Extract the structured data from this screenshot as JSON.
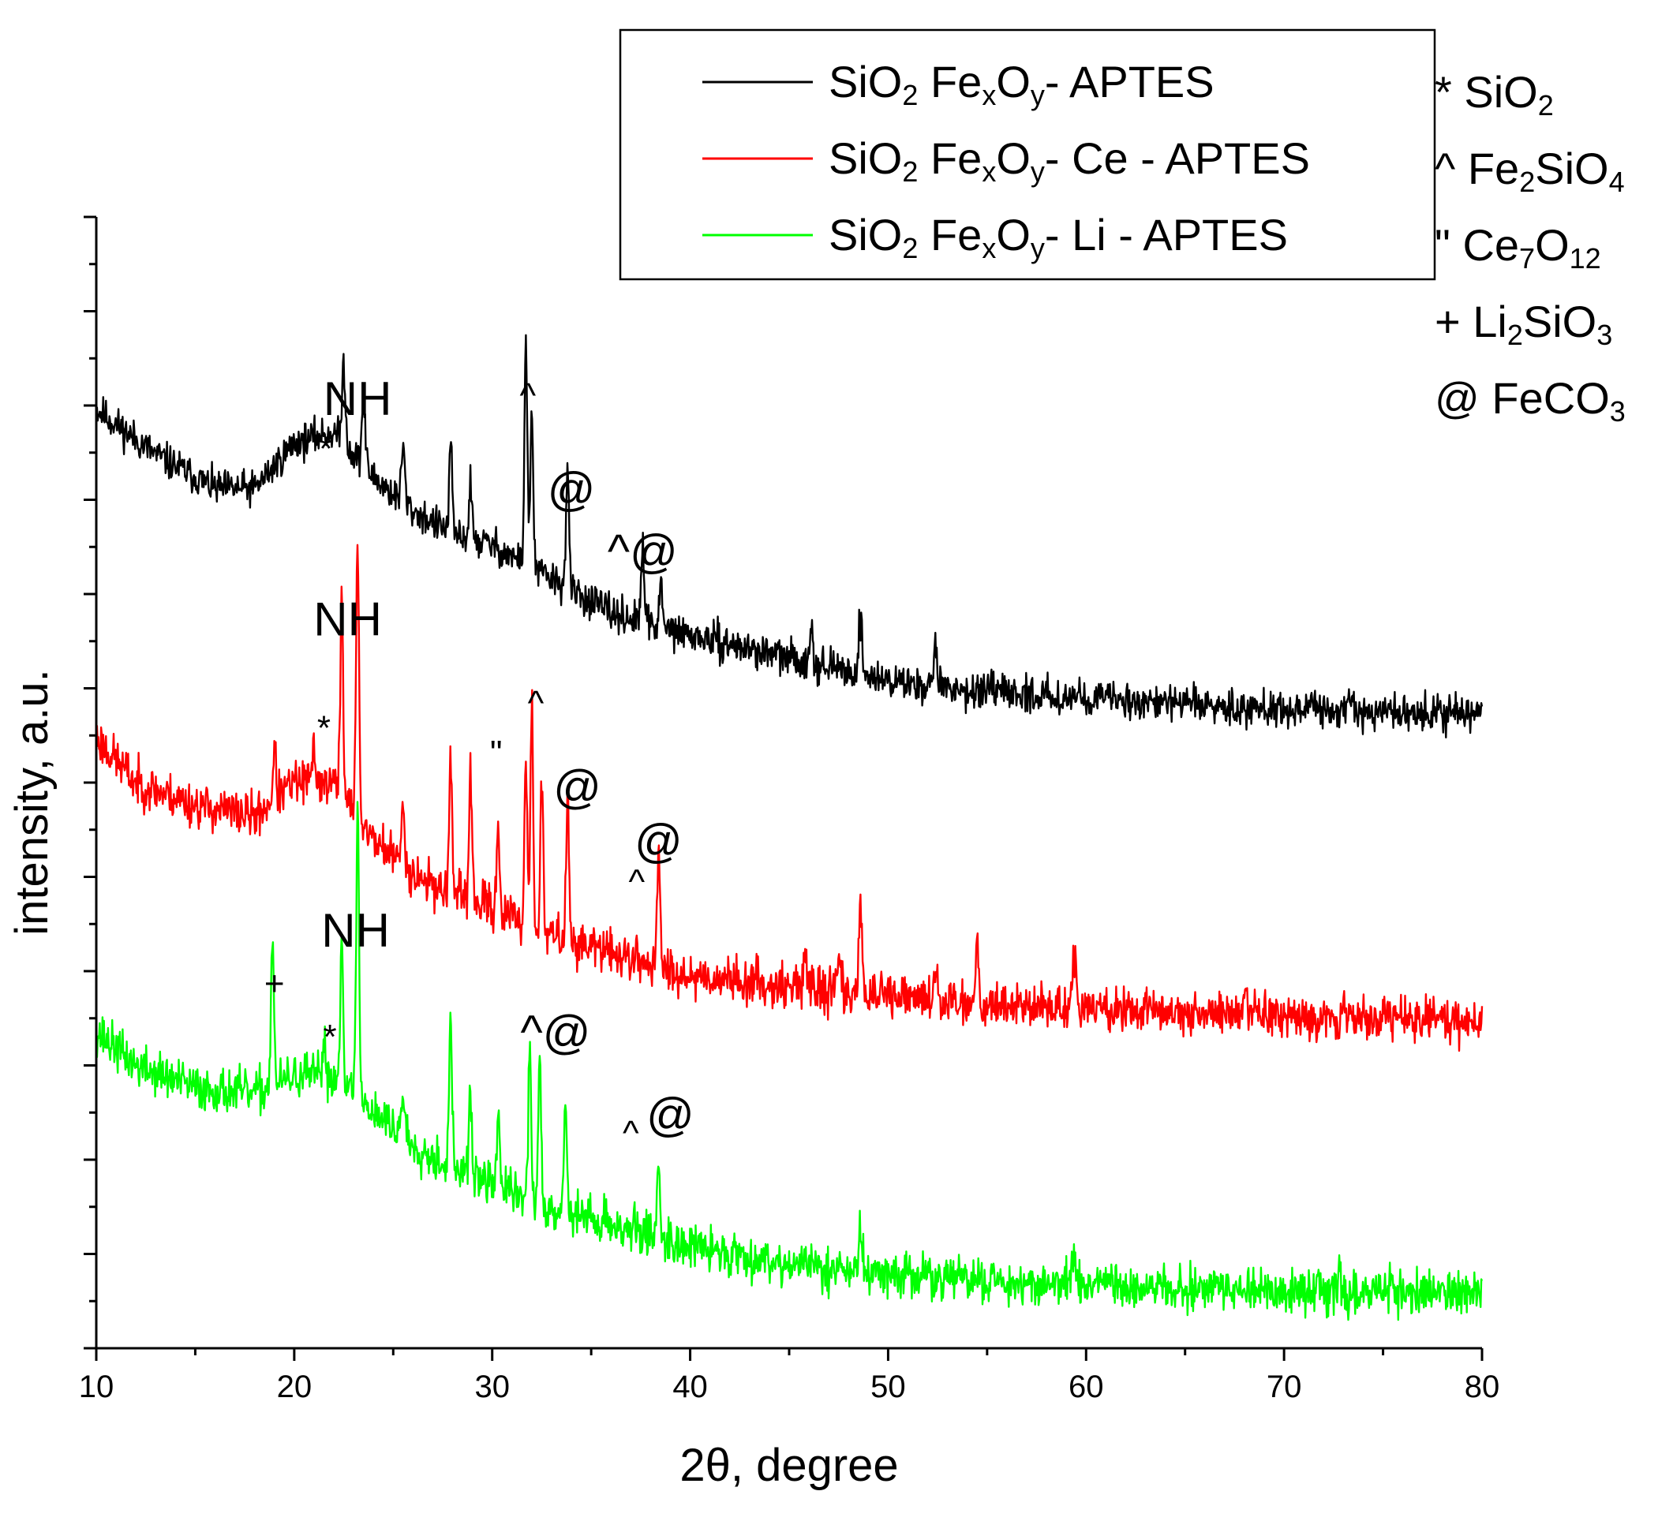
{
  "chart_data": {
    "type": "line",
    "title": "",
    "xlabel": "2θ, degree",
    "ylabel": "intensity, a.u.",
    "xlim": [
      10,
      80
    ],
    "ylim": [
      0,
      100
    ],
    "xticks": [
      10,
      20,
      30,
      40,
      50,
      60,
      70,
      80
    ],
    "y_tick_labels_shown": false,
    "grid": false,
    "legend_position": "top-right",
    "series": [
      {
        "name": "SiO2 FexOy- APTES",
        "name_parts": [
          {
            "text": "SiO",
            "sub": false
          },
          {
            "text": "2",
            "sub": true
          },
          {
            "text": " Fe",
            "sub": false
          },
          {
            "text": "x",
            "sub": true
          },
          {
            "text": "O",
            "sub": false
          },
          {
            "text": "y",
            "sub": true
          },
          {
            "text": "- APTES",
            "sub": false
          }
        ],
        "color": "#000000",
        "seed": 11,
        "noise": 1.1,
        "baseline": [
          [
            10,
            83
          ],
          [
            13,
            79
          ],
          [
            16,
            76
          ],
          [
            18,
            76
          ],
          [
            20,
            80
          ],
          [
            22,
            81
          ],
          [
            24,
            77
          ],
          [
            26,
            74
          ],
          [
            28,
            72
          ],
          [
            30,
            71
          ],
          [
            32,
            69
          ],
          [
            36,
            65
          ],
          [
            40,
            63
          ],
          [
            45,
            61
          ],
          [
            50,
            59
          ],
          [
            55,
            58
          ],
          [
            60,
            57.5
          ],
          [
            70,
            56.5
          ],
          [
            80,
            56
          ]
        ],
        "peaks": [
          [
            22.5,
            7,
            0.12
          ],
          [
            23.5,
            6,
            0.12
          ],
          [
            25.5,
            5,
            0.12
          ],
          [
            27.9,
            8,
            0.1
          ],
          [
            28.9,
            5,
            0.1
          ],
          [
            31.7,
            20,
            0.1
          ],
          [
            32.0,
            14,
            0.1
          ],
          [
            33.8,
            11,
            0.1
          ],
          [
            37.6,
            7,
            0.1
          ],
          [
            38.5,
            4,
            0.1
          ],
          [
            46.1,
            3.5,
            0.12
          ],
          [
            48.6,
            5,
            0.12
          ],
          [
            52.4,
            3.5,
            0.12
          ]
        ]
      },
      {
        "name": "SiO2 FexOy- Ce - APTES",
        "name_parts": [
          {
            "text": "SiO",
            "sub": false
          },
          {
            "text": "2",
            "sub": true
          },
          {
            "text": " Fe",
            "sub": false
          },
          {
            "text": "x",
            "sub": true
          },
          {
            "text": "O",
            "sub": false
          },
          {
            "text": "y",
            "sub": true
          },
          {
            "text": "- Ce - APTES",
            "sub": false
          }
        ],
        "color": "#ff0000",
        "seed": 23,
        "noise": 1.4,
        "baseline": [
          [
            10,
            54
          ],
          [
            12,
            50
          ],
          [
            15,
            48
          ],
          [
            18,
            47
          ],
          [
            20,
            50
          ],
          [
            22,
            50
          ],
          [
            24,
            45
          ],
          [
            26,
            42
          ],
          [
            28,
            40
          ],
          [
            30,
            39
          ],
          [
            32,
            37
          ],
          [
            36,
            35
          ],
          [
            40,
            33
          ],
          [
            45,
            32
          ],
          [
            50,
            31
          ],
          [
            55,
            30.5
          ],
          [
            60,
            30
          ],
          [
            70,
            29.5
          ],
          [
            80,
            29
          ]
        ],
        "peaks": [
          [
            19.0,
            4,
            0.12
          ],
          [
            21.0,
            3,
            0.12
          ],
          [
            22.4,
            18,
            0.1
          ],
          [
            23.2,
            25,
            0.1
          ],
          [
            25.5,
            5,
            0.12
          ],
          [
            27.9,
            13,
            0.1
          ],
          [
            28.9,
            12,
            0.1
          ],
          [
            30.3,
            8,
            0.1
          ],
          [
            31.7,
            15,
            0.1
          ],
          [
            32.0,
            20,
            0.1
          ],
          [
            32.5,
            13,
            0.1
          ],
          [
            33.8,
            13,
            0.1
          ],
          [
            38.4,
            10,
            0.1
          ],
          [
            45.8,
            3.5,
            0.12
          ],
          [
            47.5,
            3.5,
            0.12
          ],
          [
            48.6,
            8,
            0.12
          ],
          [
            52.4,
            3,
            0.12
          ],
          [
            54.5,
            5,
            0.12
          ],
          [
            59.4,
            4.5,
            0.12
          ],
          [
            68.0,
            2,
            0.12
          ]
        ]
      },
      {
        "name": "SiO2 FexOy- Li - APTES",
        "name_parts": [
          {
            "text": "SiO",
            "sub": false
          },
          {
            "text": "2",
            "sub": true
          },
          {
            "text": " Fe",
            "sub": false
          },
          {
            "text": "x",
            "sub": true
          },
          {
            "text": "O",
            "sub": false
          },
          {
            "text": "y",
            "sub": true
          },
          {
            "text": "- Li - APTES",
            "sub": false
          }
        ],
        "color": "#00ff00",
        "seed": 37,
        "noise": 1.4,
        "baseline": [
          [
            10,
            28
          ],
          [
            12,
            25
          ],
          [
            15,
            23
          ],
          [
            18,
            22.5
          ],
          [
            20,
            24
          ],
          [
            22,
            24
          ],
          [
            24,
            21
          ],
          [
            26,
            18
          ],
          [
            28,
            16
          ],
          [
            30,
            14.5
          ],
          [
            32,
            13
          ],
          [
            36,
            11
          ],
          [
            40,
            9
          ],
          [
            45,
            7.5
          ],
          [
            50,
            6.5
          ],
          [
            55,
            6
          ],
          [
            60,
            5.5
          ],
          [
            70,
            5
          ],
          [
            80,
            5
          ]
        ],
        "peaks": [
          [
            18.9,
            14,
            0.1
          ],
          [
            21.5,
            3,
            0.12
          ],
          [
            22.4,
            14,
            0.1
          ],
          [
            23.2,
            26,
            0.1
          ],
          [
            25.5,
            4,
            0.12
          ],
          [
            27.9,
            13,
            0.1
          ],
          [
            28.9,
            7,
            0.1
          ],
          [
            30.3,
            7,
            0.1
          ],
          [
            31.9,
            14,
            0.1
          ],
          [
            32.4,
            12,
            0.1
          ],
          [
            33.7,
            10,
            0.1
          ],
          [
            38.4,
            7,
            0.1
          ],
          [
            48.6,
            3.5,
            0.12
          ],
          [
            59.4,
            3.5,
            0.12
          ],
          [
            72.8,
            2,
            0.12
          ]
        ]
      }
    ],
    "annotations": [
      {
        "text": "NH",
        "x": 23.2,
        "y": 82.5,
        "size": "big"
      },
      {
        "text": "*",
        "x": 21.6,
        "y": 78.5,
        "size": "small"
      },
      {
        "text": "^",
        "x": 31.8,
        "y": 83.2,
        "size": "small"
      },
      {
        "text": "@",
        "x": 34.0,
        "y": 74.5,
        "size": "big"
      },
      {
        "text": "^@",
        "x": 37.6,
        "y": 69.0,
        "size": "big"
      },
      {
        "text": "NH",
        "x": 22.7,
        "y": 63.0,
        "size": "big"
      },
      {
        "text": "*",
        "x": 21.5,
        "y": 53.8,
        "size": "small"
      },
      {
        "text": "\"",
        "x": 30.2,
        "y": 51.6,
        "size": "small"
      },
      {
        "text": "^",
        "x": 32.2,
        "y": 56.0,
        "size": "small"
      },
      {
        "text": "@",
        "x": 34.3,
        "y": 48.2,
        "size": "big"
      },
      {
        "text": "@",
        "x": 38.4,
        "y": 43.4,
        "size": "big"
      },
      {
        "text": "^",
        "x": 37.3,
        "y": 40.2,
        "size": "small"
      },
      {
        "text": "NH",
        "x": 23.1,
        "y": 35.5,
        "size": "big"
      },
      {
        "text": "+",
        "x": 19.0,
        "y": 31.2,
        "size": "small"
      },
      {
        "text": "*",
        "x": 21.8,
        "y": 26.5,
        "size": "small"
      },
      {
        "text": "^@",
        "x": 33.2,
        "y": 26.5,
        "size": "big"
      },
      {
        "text": "^",
        "x": 37.0,
        "y": 18.0,
        "size": "small"
      },
      {
        "text": "@",
        "x": 39.0,
        "y": 19.2,
        "size": "big"
      }
    ],
    "phase_key": [
      {
        "parts": [
          {
            "text": "* SiO",
            "sub": false
          },
          {
            "text": "2",
            "sub": true
          }
        ]
      },
      {
        "parts": [
          {
            "text": "^ Fe",
            "sub": false
          },
          {
            "text": "2",
            "sub": true
          },
          {
            "text": "SiO",
            "sub": false
          },
          {
            "text": "4",
            "sub": true
          }
        ]
      },
      {
        "parts": [
          {
            "text": "\" Ce",
            "sub": false
          },
          {
            "text": "7",
            "sub": true
          },
          {
            "text": "O",
            "sub": false
          },
          {
            "text": "12",
            "sub": true
          }
        ]
      },
      {
        "parts": [
          {
            "text": "+ Li",
            "sub": false
          },
          {
            "text": "2",
            "sub": true
          },
          {
            "text": "SiO",
            "sub": false
          },
          {
            "text": "3",
            "sub": true
          }
        ]
      },
      {
        "parts": [
          {
            "text": "@ FeCO",
            "sub": false
          },
          {
            "text": "3",
            "sub": true
          }
        ]
      }
    ]
  }
}
